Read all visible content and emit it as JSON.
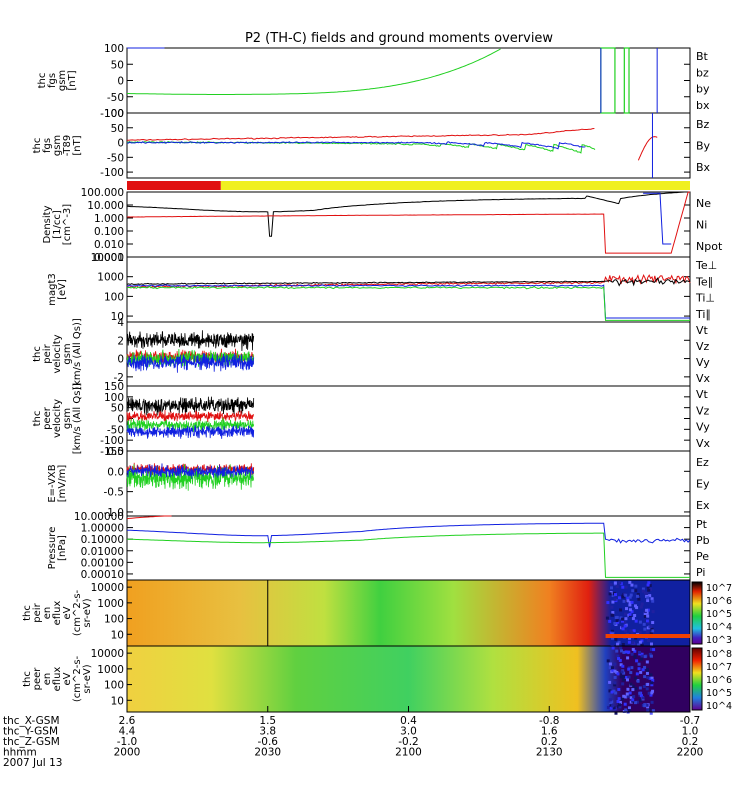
{
  "colors": {
    "black": "#000000",
    "red": "#e01010",
    "green": "#20d020",
    "blue": "#1020e0",
    "yellow": "#f0f020"
  },
  "chart_data": {
    "type": "line",
    "title": "P2 (TH-C) fields and ground moments overview",
    "panels": [
      {
        "id": "fgs",
        "ylabel": [
          "thc",
          "fgs",
          "gsm",
          "[nT]"
        ],
        "ylim": [
          -100,
          100
        ],
        "ticks": [
          "100",
          "50",
          "0",
          "-50",
          "-100"
        ],
        "tickvals": [
          100,
          50,
          0,
          -50,
          -100
        ],
        "legend": [
          {
            "name": "Bt",
            "color": "black"
          },
          {
            "name": "bz",
            "color": "red"
          },
          {
            "name": "by",
            "color": "green"
          },
          {
            "name": "bx",
            "color": "blue"
          }
        ]
      },
      {
        "id": "fgsfit",
        "ylabel": [
          "thc",
          "fgs",
          "gsm",
          "-T89",
          "[nT]"
        ],
        "ylim": [
          -120,
          100
        ],
        "ticks": [
          "100",
          "50",
          "0",
          "-50",
          "-100"
        ],
        "tickvals": [
          100,
          50,
          0,
          -50,
          -100
        ],
        "legend": [
          {
            "name": "Bz",
            "color": "red"
          },
          {
            "name": "By",
            "color": "green"
          },
          {
            "name": "Bx",
            "color": "blue"
          }
        ]
      },
      {
        "id": "density",
        "ylabel": [
          "Density",
          "[1/cc]",
          "[cm^-3]"
        ],
        "log": true,
        "ylim": [
          0.001,
          100
        ],
        "ticks": [
          "100.000",
          "10.000",
          "1.000",
          "0.100",
          "0.010",
          "0.001"
        ],
        "tickvals": [
          100,
          10,
          1,
          0.1,
          0.01,
          0.001
        ],
        "legend": [
          {
            "name": "Ne",
            "color": "red"
          },
          {
            "name": "Ni",
            "color": "black"
          },
          {
            "name": "Npot",
            "color": "blue"
          }
        ]
      },
      {
        "id": "temp",
        "ylabel": [
          "magt3",
          "[eV]"
        ],
        "log": true,
        "ylim": [
          5,
          10000
        ],
        "ticks": [
          "10000",
          "1000",
          "100",
          "10"
        ],
        "tickvals": [
          10000,
          1000,
          100,
          10
        ],
        "legend": [
          {
            "name": "Te⊥",
            "color": "red"
          },
          {
            "name": "Te∥",
            "color": "black"
          },
          {
            "name": "Ti⊥",
            "color": "blue"
          },
          {
            "name": "Ti∥",
            "color": "green"
          }
        ]
      },
      {
        "id": "peir",
        "ylabel": [
          "thc",
          "peir",
          "velocity",
          "gsm",
          "[km/s (All Qs)]"
        ],
        "ylim": [
          -3,
          4
        ],
        "ticks": [
          "4",
          "2",
          "0",
          "-2"
        ],
        "tickvals": [
          4,
          2,
          0,
          -2
        ],
        "legend": [
          {
            "name": "Vt",
            "color": "black"
          },
          {
            "name": "Vz",
            "color": "red"
          },
          {
            "name": "Vy",
            "color": "green"
          },
          {
            "name": "Vx",
            "color": "blue"
          }
        ]
      },
      {
        "id": "peer",
        "ylabel": [
          "thc",
          "peer",
          "velocity",
          "gsm",
          "[km/s (All Qs)]"
        ],
        "ylim": [
          -150,
          150
        ],
        "ticks": [
          "150",
          "100",
          "50",
          "0",
          "-50",
          "-100",
          "-150"
        ],
        "tickvals": [
          150,
          100,
          50,
          0,
          -50,
          -100,
          -150
        ],
        "legend": [
          {
            "name": "Vt",
            "color": "black"
          },
          {
            "name": "Vz",
            "color": "red"
          },
          {
            "name": "Vy",
            "color": "green"
          },
          {
            "name": "Vx",
            "color": "blue"
          }
        ]
      },
      {
        "id": "efield",
        "ylabel": [
          "E=-VXB",
          "[mV/m]"
        ],
        "ylim": [
          -1.1,
          0.5
        ],
        "ticks": [
          "0.5",
          "0.0",
          "-0.5",
          "-1.0"
        ],
        "tickvals": [
          0.5,
          0,
          -0.5,
          -1.0
        ],
        "legend": [
          {
            "name": "Ez",
            "color": "red"
          },
          {
            "name": "Ey",
            "color": "green"
          },
          {
            "name": "Ex",
            "color": "blue"
          }
        ]
      },
      {
        "id": "pressure",
        "ylabel": [
          "Pressure",
          "[nPa]"
        ],
        "log": true,
        "ylim": [
          3e-05,
          10
        ],
        "ticks": [
          "10.00000",
          "1.00000",
          "0.10000",
          "0.01000",
          "0.00100",
          "0.00010"
        ],
        "tickvals": [
          10,
          1,
          0.1,
          0.01,
          0.001,
          0.0001
        ],
        "legend": [
          {
            "name": "Pt",
            "color": "black"
          },
          {
            "name": "Pb",
            "color": "red"
          },
          {
            "name": "Pe",
            "color": "green"
          },
          {
            "name": "Pi",
            "color": "blue"
          }
        ]
      },
      {
        "id": "peirspec",
        "type": "heatmap",
        "ylabel": [
          "thc",
          "peir",
          "en",
          "eflux",
          "eV",
          "(cm^2-s-",
          "sr-eV)"
        ],
        "ticks": [
          "10000",
          "1000",
          "100",
          "10"
        ],
        "colorbar": [
          "10^7",
          "10^6",
          "10^5",
          "10^4",
          "10^3"
        ]
      },
      {
        "id": "peerspec",
        "type": "heatmap",
        "ylabel": [
          "thc",
          "peer",
          "en",
          "eflux",
          "eV",
          "(cm^2-s-",
          "sr-eV)"
        ],
        "ticks": [
          "10000",
          "1000",
          "100",
          "10"
        ],
        "colorbar": [
          "10^8",
          "10^7",
          "10^6",
          "10^5",
          "10^4"
        ]
      }
    ],
    "x_axis": {
      "rows": [
        {
          "label": "thc_X-GSM",
          "values": [
            "2.6",
            "1.5",
            "0.4",
            "-0.8",
            "-0.7"
          ]
        },
        {
          "label": "thc_Y-GSM",
          "values": [
            "4.4",
            "3.8",
            "3.0",
            "1.6",
            "1.0"
          ]
        },
        {
          "label": "thc_Z-GSM",
          "values": [
            "-1.0",
            "-0.6",
            "-0.2",
            "0.2",
            "0.2"
          ]
        },
        {
          "label": "hhmm",
          "values": [
            "2000",
            "2030",
            "2100",
            "2130",
            "2200"
          ]
        }
      ],
      "date": "2007 Jul 13"
    },
    "status_bar": {
      "segments": [
        {
          "color": "red",
          "from_min": 0,
          "to_min": 20
        },
        {
          "color": "yellow",
          "from_min": 20,
          "to_min": 120
        }
      ]
    }
  }
}
